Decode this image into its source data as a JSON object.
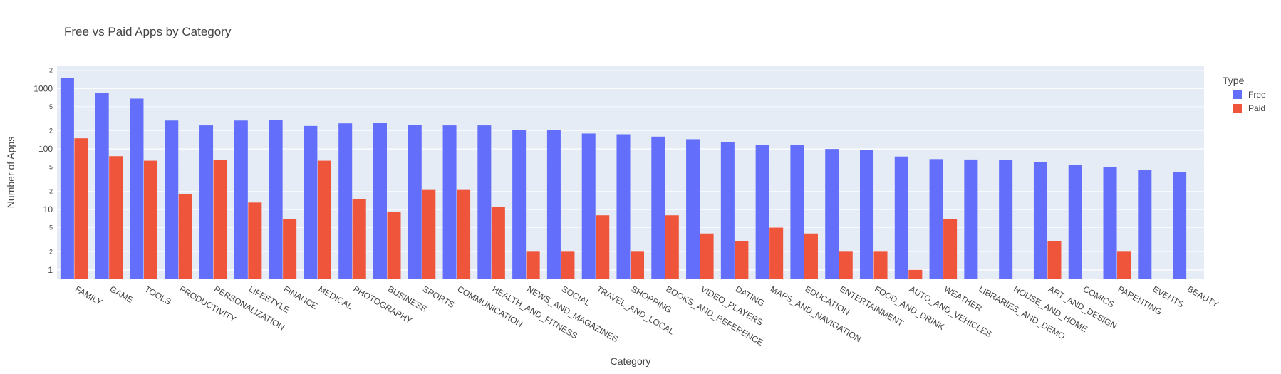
{
  "chart_data": {
    "type": "bar",
    "title": "Free vs Paid Apps by Category",
    "xlabel": "Category",
    "ylabel": "Number of Apps",
    "y_scale": "log",
    "ylim": [
      0.7,
      2400
    ],
    "y_major_ticks": [
      {
        "value": 1,
        "label": "1"
      },
      {
        "value": 10,
        "label": "10"
      },
      {
        "value": 100,
        "label": "100"
      },
      {
        "value": 1000,
        "label": "1000"
      }
    ],
    "y_minor_ticks": [
      {
        "value": 2,
        "label": "2"
      },
      {
        "value": 5,
        "label": "5"
      },
      {
        "value": 20,
        "label": "2"
      },
      {
        "value": 50,
        "label": "5"
      },
      {
        "value": 200,
        "label": "2"
      },
      {
        "value": 500,
        "label": "5"
      },
      {
        "value": 2000,
        "label": "2"
      }
    ],
    "grid": true,
    "legend": {
      "title": "Type",
      "position": "top-right"
    },
    "categories": [
      "FAMILY",
      "GAME",
      "TOOLS",
      "PRODUCTIVITY",
      "PERSONALIZATION",
      "LIFESTYLE",
      "FINANCE",
      "MEDICAL",
      "PHOTOGRAPHY",
      "BUSINESS",
      "SPORTS",
      "COMMUNICATION",
      "HEALTH_AND_FITNESS",
      "NEWS_AND_MAGAZINES",
      "SOCIAL",
      "TRAVEL_AND_LOCAL",
      "SHOPPING",
      "BOOKS_AND_REFERENCE",
      "VIDEO_PLAYERS",
      "DATING",
      "MAPS_AND_NAVIGATION",
      "EDUCATION",
      "ENTERTAINMENT",
      "FOOD_AND_DRINK",
      "AUTO_AND_VEHICLES",
      "WEATHER",
      "LIBRARIES_AND_DEMO",
      "HOUSE_AND_HOME",
      "ART_AND_DESIGN",
      "COMICS",
      "PARENTING",
      "EVENTS",
      "BEAUTY"
    ],
    "series": [
      {
        "name": "Free",
        "color": "#636efa",
        "values": [
          1500,
          850,
          680,
          295,
          245,
          295,
          305,
          240,
          265,
          270,
          250,
          245,
          245,
          205,
          205,
          180,
          175,
          160,
          145,
          130,
          115,
          115,
          100,
          95,
          75,
          68,
          67,
          65,
          60,
          55,
          50,
          45,
          42
        ]
      },
      {
        "name": "Paid",
        "color": "#ef553b",
        "values": [
          150,
          76,
          64,
          18,
          65,
          13,
          7,
          64,
          15,
          9,
          21,
          21,
          11,
          2,
          2,
          8,
          2,
          8,
          4,
          3,
          5,
          4,
          2,
          2,
          1,
          7,
          null,
          null,
          3,
          null,
          2,
          null,
          null
        ]
      }
    ]
  }
}
